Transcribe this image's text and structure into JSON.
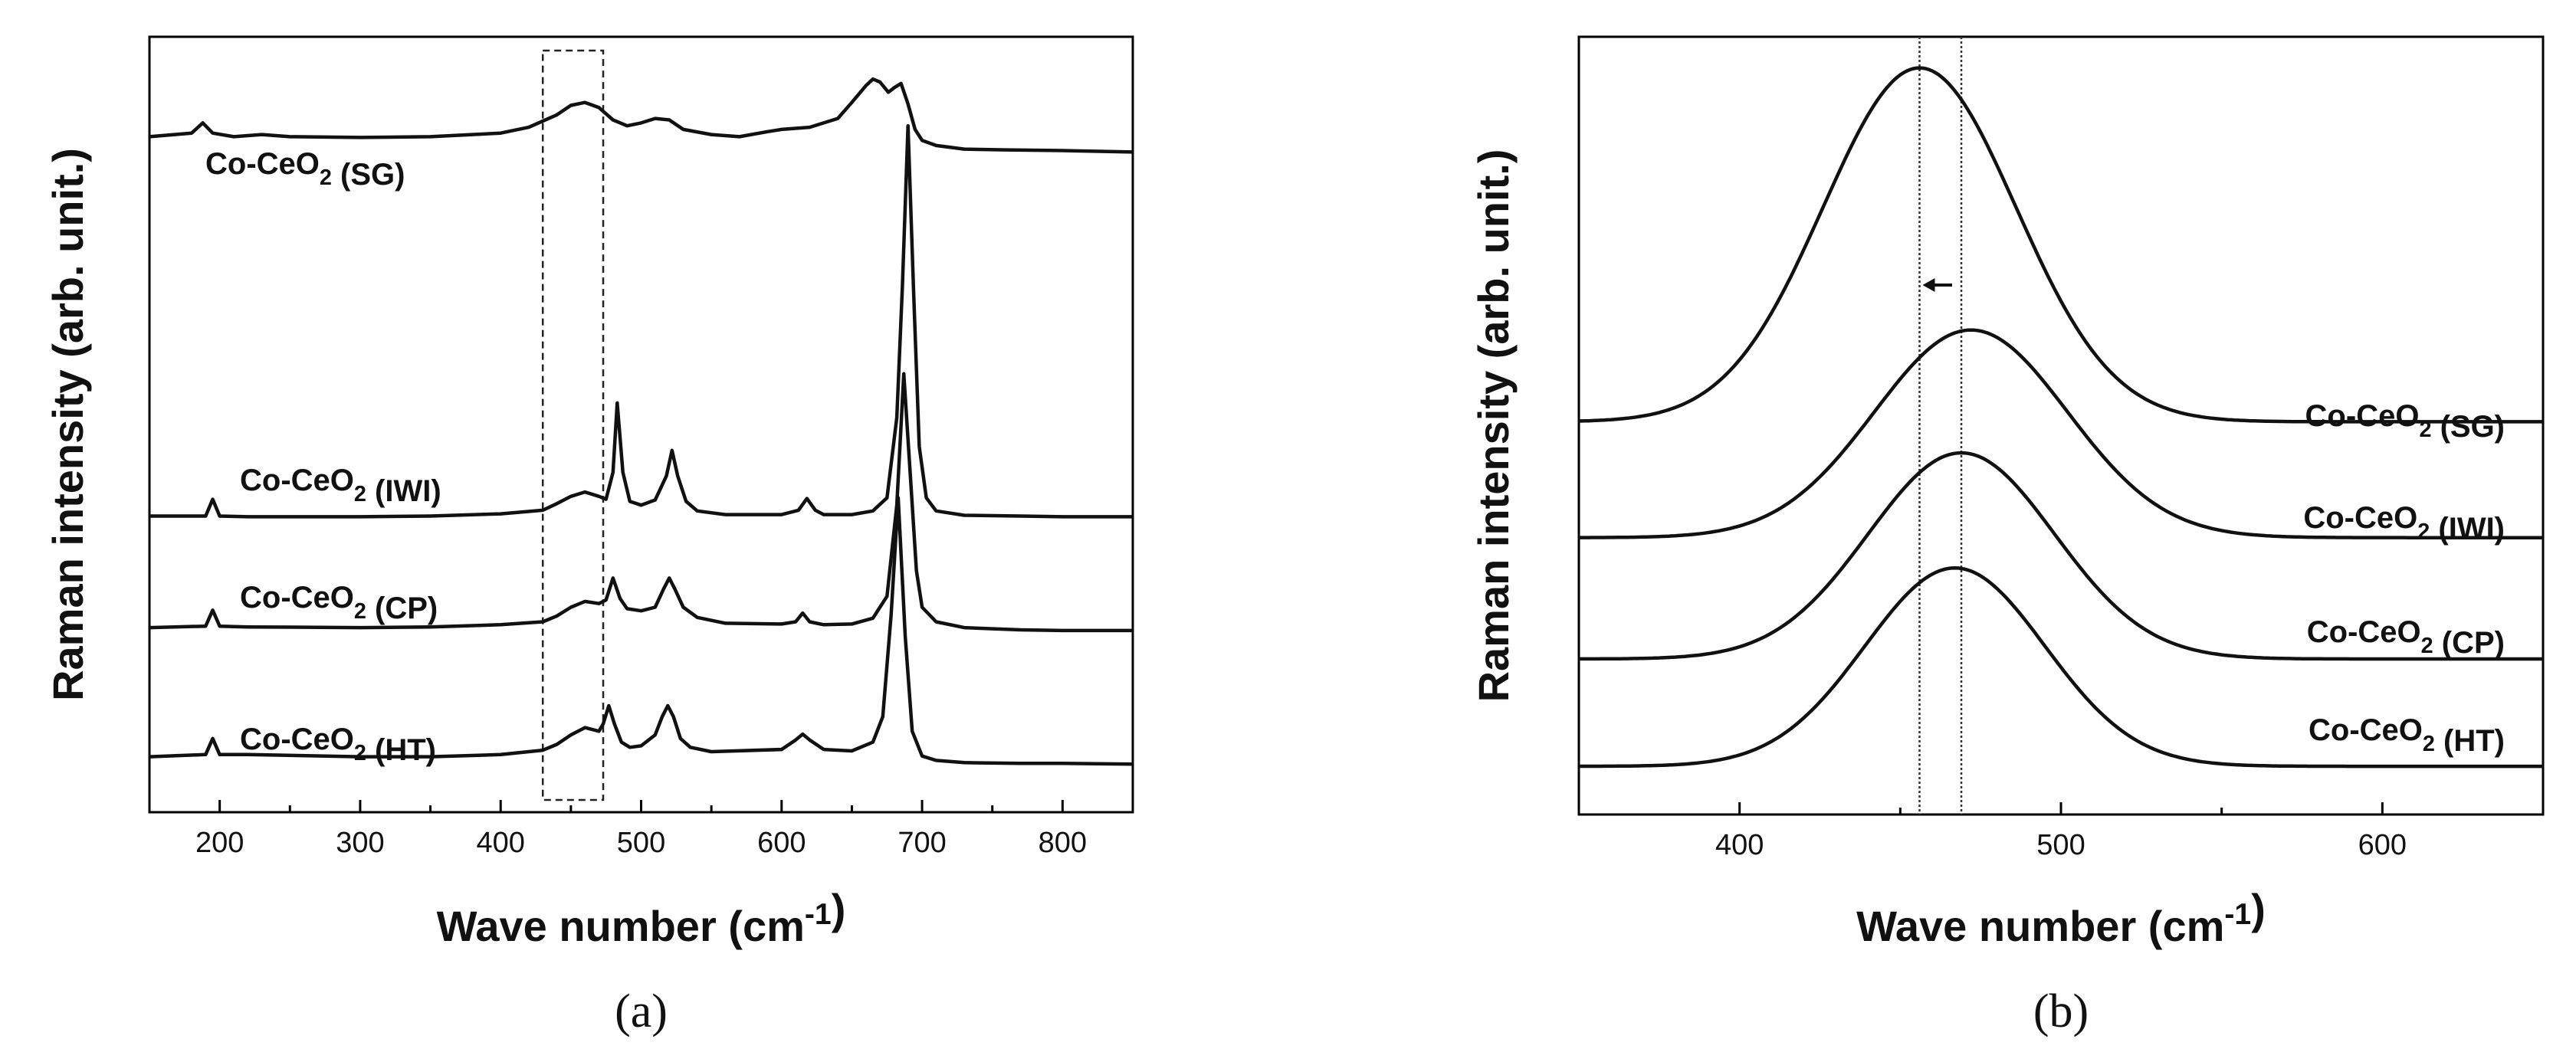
{
  "chart_data": [
    {
      "panel": "(a)",
      "type": "line",
      "xlabel": "Wave number (cm-1)",
      "ylabel": "Raman intensity (arb. unit.)",
      "xlim": [
        150,
        850
      ],
      "xticks": [
        200,
        300,
        400,
        500,
        600,
        700,
        800
      ],
      "highlight_box_x": [
        430,
        473
      ],
      "series": [
        {
          "name": "Co-CeO2 (SG)",
          "x": [
            150,
            180,
            188,
            195,
            210,
            230,
            250,
            300,
            350,
            400,
            420,
            440,
            450,
            460,
            470,
            480,
            490,
            500,
            510,
            520,
            530,
            550,
            570,
            590,
            600,
            620,
            640,
            650,
            660,
            665,
            670,
            676,
            680,
            685,
            690,
            695,
            700,
            710,
            730,
            760,
            800,
            850
          ],
          "y": [
            0.905,
            0.91,
            0.924,
            0.91,
            0.905,
            0.908,
            0.905,
            0.904,
            0.905,
            0.91,
            0.918,
            0.935,
            0.948,
            0.952,
            0.945,
            0.928,
            0.92,
            0.924,
            0.93,
            0.928,
            0.915,
            0.908,
            0.905,
            0.912,
            0.915,
            0.918,
            0.93,
            0.952,
            0.975,
            0.984,
            0.98,
            0.966,
            0.972,
            0.978,
            0.95,
            0.915,
            0.9,
            0.893,
            0.888,
            0.887,
            0.886,
            0.884
          ]
        },
        {
          "name": "Co-CeO2 (IWI)",
          "x": [
            150,
            190,
            195,
            200,
            220,
            300,
            350,
            400,
            430,
            440,
            450,
            460,
            470,
            475,
            480,
            483,
            487,
            492,
            500,
            510,
            518,
            522,
            526,
            532,
            540,
            560,
            600,
            612,
            618,
            624,
            630,
            650,
            665,
            675,
            682,
            686,
            690,
            694,
            698,
            703,
            710,
            730,
            770,
            800,
            850
          ],
          "y": [
            0.385,
            0.385,
            0.408,
            0.385,
            0.384,
            0.384,
            0.385,
            0.388,
            0.393,
            0.402,
            0.412,
            0.418,
            0.412,
            0.408,
            0.445,
            0.54,
            0.445,
            0.405,
            0.4,
            0.407,
            0.44,
            0.475,
            0.44,
            0.405,
            0.392,
            0.387,
            0.387,
            0.393,
            0.409,
            0.393,
            0.387,
            0.387,
            0.392,
            0.41,
            0.52,
            0.7,
            0.92,
            0.69,
            0.48,
            0.41,
            0.392,
            0.386,
            0.385,
            0.384,
            0.384
          ]
        },
        {
          "name": "Co-CeO2 (CP)",
          "x": [
            150,
            190,
            195,
            200,
            220,
            300,
            350,
            400,
            430,
            440,
            450,
            460,
            470,
            475,
            480,
            485,
            490,
            500,
            510,
            516,
            520,
            524,
            530,
            540,
            560,
            600,
            610,
            615,
            620,
            630,
            650,
            665,
            675,
            682,
            687,
            692,
            696,
            700,
            710,
            730,
            770,
            800,
            850
          ],
          "y": [
            0.232,
            0.234,
            0.256,
            0.234,
            0.233,
            0.232,
            0.233,
            0.236,
            0.24,
            0.248,
            0.26,
            0.268,
            0.265,
            0.27,
            0.3,
            0.272,
            0.258,
            0.255,
            0.26,
            0.285,
            0.3,
            0.285,
            0.26,
            0.246,
            0.238,
            0.237,
            0.24,
            0.252,
            0.24,
            0.236,
            0.237,
            0.245,
            0.275,
            0.4,
            0.58,
            0.43,
            0.31,
            0.26,
            0.24,
            0.232,
            0.229,
            0.228,
            0.228
          ]
        },
        {
          "name": "Co-CeO2 (HT)",
          "x": [
            150,
            190,
            195,
            200,
            220,
            300,
            350,
            400,
            430,
            440,
            450,
            460,
            470,
            473,
            477,
            481,
            486,
            492,
            500,
            510,
            515,
            519,
            523,
            528,
            535,
            550,
            600,
            610,
            615,
            620,
            630,
            650,
            665,
            672,
            678,
            683,
            688,
            693,
            700,
            710,
            730,
            770,
            800,
            850
          ],
          "y": [
            0.055,
            0.058,
            0.08,
            0.058,
            0.058,
            0.055,
            0.055,
            0.058,
            0.064,
            0.072,
            0.085,
            0.095,
            0.09,
            0.1,
            0.125,
            0.1,
            0.075,
            0.068,
            0.07,
            0.085,
            0.11,
            0.125,
            0.11,
            0.08,
            0.068,
            0.062,
            0.065,
            0.078,
            0.086,
            0.078,
            0.065,
            0.063,
            0.075,
            0.11,
            0.25,
            0.41,
            0.22,
            0.09,
            0.056,
            0.05,
            0.047,
            0.046,
            0.046,
            0.045
          ]
        }
      ]
    },
    {
      "panel": "(b)",
      "type": "line",
      "xlabel": "Wave number (cm-1)",
      "ylabel": "Raman intensity (arb. unit.)",
      "xlim": [
        350,
        650
      ],
      "xticks": [
        400,
        500,
        600
      ],
      "reference_lines_x": [
        456,
        469
      ],
      "series": [
        {
          "name": "Co-CeO2 (SG)",
          "center": 456,
          "sigma": 30,
          "baseline": 0.505,
          "amplitude": 0.455
        },
        {
          "name": "Co-CeO2 (IWI)",
          "center": 472,
          "sigma": 30,
          "baseline": 0.356,
          "amplitude": 0.267
        },
        {
          "name": "Co-CeO2 (CP)",
          "center": 469,
          "sigma": 29,
          "baseline": 0.2,
          "amplitude": 0.265
        },
        {
          "name": "Co-CeO2 (HT)",
          "center": 467,
          "sigma": 28,
          "baseline": 0.062,
          "amplitude": 0.255
        }
      ]
    }
  ]
}
